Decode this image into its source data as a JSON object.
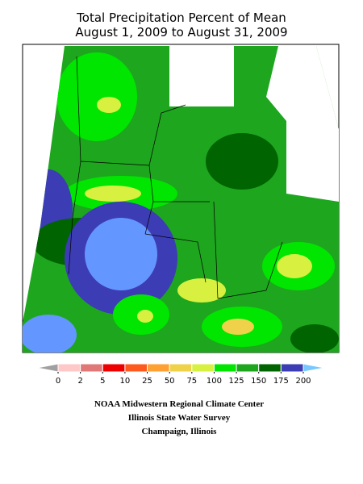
{
  "title": [
    "Total Precipitation Percent of Mean",
    "August 1, 2009 to August 31, 2009"
  ],
  "legend": {
    "ticks": [
      0,
      2,
      5,
      10,
      25,
      50,
      75,
      100,
      125,
      150,
      175,
      200
    ],
    "colors": [
      "#ffc8c8",
      "#e07878",
      "#ee0000",
      "#ff5a1e",
      "#ffa032",
      "#f0d24a",
      "#d8f040",
      "#00e600",
      "#1ea61e",
      "#006400",
      "#3c3cb4",
      "#6496ff"
    ],
    "under_color": "#a0a0a0",
    "over_color": "#78c8ff"
  },
  "credits": [
    "NOAA Midwestern Regional Climate Center",
    "Illinois State Water Survey",
    "Champaign, Illinois"
  ]
}
